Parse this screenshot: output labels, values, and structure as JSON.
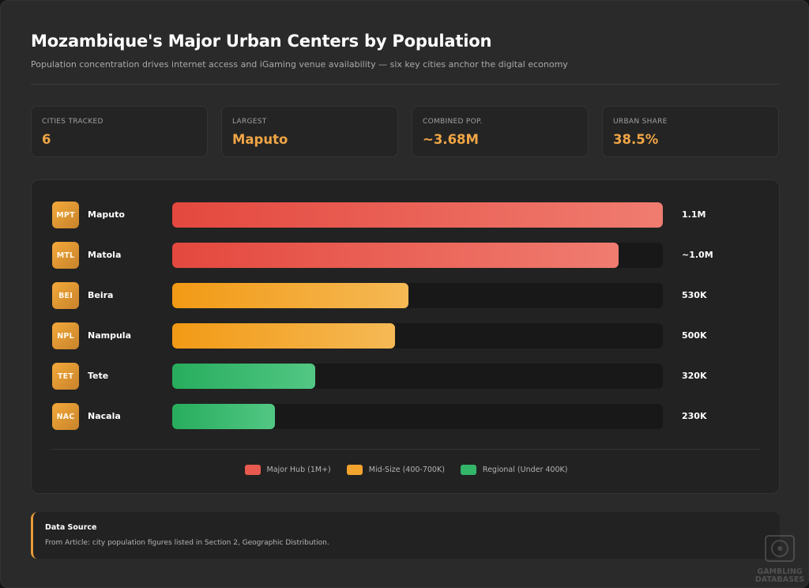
{
  "header": {
    "title": "Mozambique's Major Urban Centers by Population",
    "subtitle": "Population concentration drives internet access and iGaming venue availability — six key cities anchor the digital economy"
  },
  "stats": [
    {
      "label": "Cities Tracked",
      "value": "6"
    },
    {
      "label": "Largest",
      "value": "Maputo"
    },
    {
      "label": "Combined Pop.",
      "value": "~3.68M"
    },
    {
      "label": "Urban Share",
      "value": "38.5%"
    }
  ],
  "chart_data": {
    "type": "bar",
    "orientation": "horizontal",
    "categories": [
      "Maputo",
      "Matola",
      "Beira",
      "Nampula",
      "Tete",
      "Nacala"
    ],
    "codes": [
      "MPT",
      "MTL",
      "BEI",
      "NPL",
      "TET",
      "NAC"
    ],
    "values": [
      1100000,
      1000000,
      530000,
      500000,
      320000,
      230000
    ],
    "value_labels": [
      "1.1M",
      "~1.0M",
      "530K",
      "500K",
      "320K",
      "230K"
    ],
    "tiers": [
      "major",
      "major",
      "mid",
      "mid",
      "regional",
      "regional"
    ],
    "xlim": [
      0,
      1100000
    ],
    "legend": [
      {
        "key": "major",
        "label": "Major Hub (1M+)",
        "color": "#e85a50"
      },
      {
        "key": "mid",
        "label": "Mid-Size (400-700K)",
        "color": "#f3a42f"
      },
      {
        "key": "regional",
        "label": "Regional (Under 400K)",
        "color": "#33b56a"
      }
    ],
    "legend_position": "bottom-center",
    "grid": false
  },
  "source": {
    "heading": "Data Source",
    "text": "From Article: city population figures listed in Section 2, Geographic Distribution."
  },
  "watermark": {
    "line1": "GAMBLING",
    "line2": "DATABASES"
  },
  "colors": {
    "accent": "#f0a545",
    "background": "#2a2a2a"
  }
}
